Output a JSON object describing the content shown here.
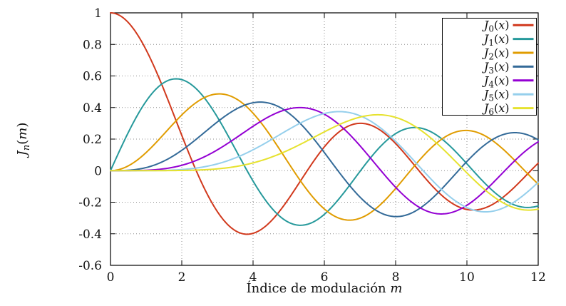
{
  "figure": {
    "background": "#ffffff"
  },
  "chart_data": {
    "type": "line",
    "title": "",
    "xlabel": {
      "text": "Índice de modulación",
      "var": "m"
    },
    "ylabel": {
      "base": "J",
      "sub": "n",
      "open": "(",
      "var": "m",
      "close": ")"
    },
    "xlim": [
      0,
      12
    ],
    "ylim": [
      -0.6,
      1
    ],
    "x_ticks": [
      {
        "v": 0,
        "label": "0"
      },
      {
        "v": 2,
        "label": "2"
      },
      {
        "v": 4,
        "label": "4"
      },
      {
        "v": 6,
        "label": "6"
      },
      {
        "v": 8,
        "label": "8"
      },
      {
        "v": 10,
        "label": "10"
      },
      {
        "v": 12,
        "label": "12"
      }
    ],
    "y_ticks": [
      {
        "v": 1,
        "label": "1"
      },
      {
        "v": 0.8,
        "label": "0.8"
      },
      {
        "v": 0.6,
        "label": "0.6"
      },
      {
        "v": 0.4,
        "label": "0.4"
      },
      {
        "v": 0.2,
        "label": "0.2"
      },
      {
        "v": 0,
        "label": "0"
      },
      {
        "v": -0.2,
        "label": "-0.2"
      },
      {
        "v": -0.4,
        "label": "-0.4"
      },
      {
        "v": -0.6,
        "label": "-0.6"
      }
    ],
    "grid": true,
    "grid_style": "dotted",
    "legend_position": "top-right",
    "function_family": "Bessel functions of the first kind J_n evaluated over the modulation index",
    "x_samples": [
      0,
      1,
      2,
      3,
      4,
      5,
      6,
      7,
      8,
      9,
      10,
      11,
      12
    ],
    "series": [
      {
        "label": "J0(x)",
        "base": "J",
        "sub": "0",
        "arg_var": "x",
        "order": 0,
        "color": "#d1391d",
        "values_at_x_samples": [
          1,
          0.7652,
          0.2239,
          -0.2601,
          -0.3971,
          -0.1776,
          0.1506,
          0.3001,
          0.1717,
          -0.0903,
          -0.2459,
          -0.1712,
          0.0477
        ]
      },
      {
        "label": "J1(x)",
        "base": "J",
        "sub": "1",
        "arg_var": "x",
        "order": 1,
        "color": "#26999b",
        "values_at_x_samples": [
          0,
          0.4401,
          0.5767,
          0.3391,
          -0.066,
          -0.3276,
          -0.2767,
          -0.0047,
          0.2346,
          0.2453,
          0.0435,
          -0.1768,
          -0.2234
        ]
      },
      {
        "label": "J2(x)",
        "base": "J",
        "sub": "2",
        "arg_var": "x",
        "order": 2,
        "color": "#e09c00",
        "values_at_x_samples": [
          0,
          0.1149,
          0.3528,
          0.4861,
          0.3641,
          0.0466,
          -0.2429,
          -0.3014,
          -0.113,
          0.1448,
          0.2546,
          0.139,
          -0.0849
        ]
      },
      {
        "label": "J3(x)",
        "base": "J",
        "sub": "3",
        "arg_var": "x",
        "order": 3,
        "color": "#336a98",
        "values_at_x_samples": [
          0,
          0.0196,
          0.1289,
          0.3091,
          0.4302,
          0.3648,
          0.1148,
          -0.1676,
          -0.2911,
          -0.1809,
          0.0584,
          0.2273,
          0.1951
        ]
      },
      {
        "label": "J4(x)",
        "base": "J",
        "sub": "4",
        "arg_var": "x",
        "order": 4,
        "color": "#9400d3",
        "values_at_x_samples": [
          0,
          0.0025,
          0.034,
          0.132,
          0.2811,
          0.3912,
          0.3576,
          0.1578,
          -0.1054,
          -0.2655,
          -0.2196,
          -0.015,
          0.1825
        ]
      },
      {
        "label": "J5(x)",
        "base": "J",
        "sub": "5",
        "arg_var": "x",
        "order": 5,
        "color": "#95cfec",
        "values_at_x_samples": [
          0,
          0.0002,
          0.007,
          0.043,
          0.1321,
          0.2611,
          0.3621,
          0.3479,
          0.1858,
          -0.055,
          -0.2341,
          -0.2383,
          -0.0735
        ]
      },
      {
        "label": "J6(x)",
        "base": "J",
        "sub": "6",
        "arg_var": "x",
        "order": 6,
        "color": "#e6e22e",
        "values_at_x_samples": [
          0,
          0.0,
          0.0012,
          0.0114,
          0.0491,
          0.131,
          0.2458,
          0.3392,
          0.3376,
          0.2043,
          -0.0145,
          -0.2016,
          -0.2437
        ]
      }
    ]
  }
}
